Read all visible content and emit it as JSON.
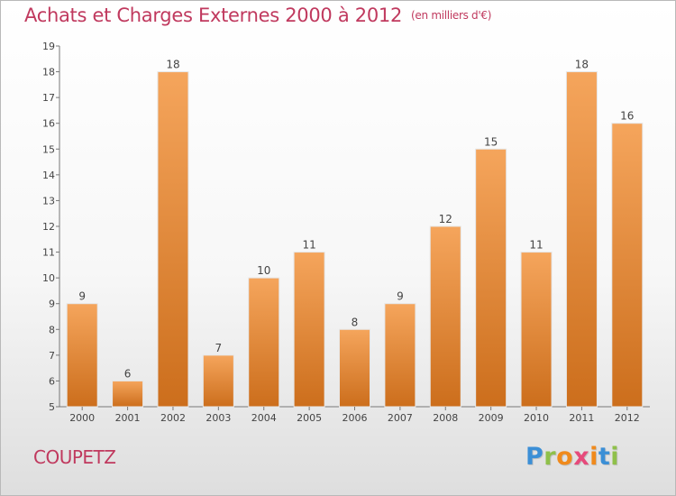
{
  "title": "Achats et Charges Externes 2000 à 2012",
  "subtitle": "(en milliers d'€)",
  "commune": "COUPETZ",
  "logo": {
    "letters": [
      "P",
      "r",
      "o",
      "x",
      "i",
      "t",
      "i"
    ],
    "colors": [
      "#3b8fd6",
      "#8fc04a",
      "#f08a1c",
      "#e64a7b",
      "#f08a1c",
      "#3b8fd6",
      "#8fc04a"
    ]
  },
  "colors": {
    "title": "#c0395e",
    "bar_light": "#f5a55c",
    "bar_dark": "#cc6e1c",
    "bar_edge": "#e6e6e6"
  },
  "chart_data": {
    "type": "bar",
    "categories": [
      "2000",
      "2001",
      "2002",
      "2003",
      "2004",
      "2005",
      "2006",
      "2007",
      "2008",
      "2009",
      "2010",
      "2011",
      "2012"
    ],
    "values": [
      9,
      6,
      18,
      7,
      10,
      11,
      8,
      9,
      12,
      15,
      11,
      18,
      16
    ],
    "ylim": [
      5,
      19
    ],
    "yticks": [
      5,
      6,
      7,
      8,
      9,
      10,
      11,
      12,
      13,
      14,
      15,
      16,
      17,
      18,
      19
    ],
    "grid": false,
    "data_labels": true
  }
}
